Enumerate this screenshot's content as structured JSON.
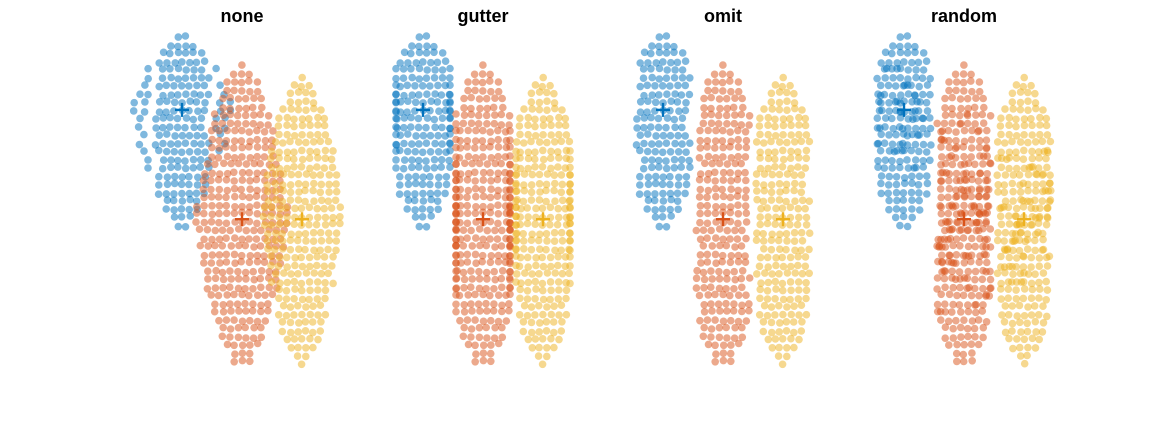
{
  "chart_data": {
    "type": "scatter",
    "title": "",
    "xlabel": "",
    "ylabel": "",
    "grid": false,
    "axes_visible": false,
    "legend": "none",
    "series_colors": [
      "#0072BD",
      "#D95319",
      "#EDB120"
    ],
    "marker_alpha": 0.5,
    "panels": [
      {
        "title": "none",
        "overflow_method": "none",
        "groups": [
          {
            "x": 1,
            "center": 6.0,
            "ymin": 2.9,
            "ymax": 8.0,
            "n": 200,
            "mean_marker": 6.0
          },
          {
            "x": 2,
            "center": 3.0,
            "ymin": -1.0,
            "ymax": 7.2,
            "n": 300,
            "mean_marker": 3.0
          },
          {
            "x": 3,
            "center": 3.0,
            "ymin": -0.9,
            "ymax": 6.9,
            "n": 200,
            "mean_marker": 3.0
          }
        ]
      },
      {
        "title": "gutter",
        "overflow_method": "gutter",
        "groups": [
          {
            "x": 1,
            "center": 6.0,
            "ymin": 2.9,
            "ymax": 8.0,
            "n": 200,
            "mean_marker": 6.0
          },
          {
            "x": 2,
            "center": 3.0,
            "ymin": -1.0,
            "ymax": 7.2,
            "n": 300,
            "mean_marker": 3.0
          },
          {
            "x": 3,
            "center": 3.0,
            "ymin": -0.9,
            "ymax": 6.9,
            "n": 200,
            "mean_marker": 3.0
          }
        ]
      },
      {
        "title": "omit",
        "overflow_method": "omit",
        "groups": [
          {
            "x": 1,
            "center": 6.0,
            "ymin": 2.9,
            "ymax": 8.0,
            "n": 200,
            "mean_marker": 6.0
          },
          {
            "x": 2,
            "center": 3.0,
            "ymin": -1.0,
            "ymax": 7.2,
            "n": 300,
            "mean_marker": 3.0
          },
          {
            "x": 3,
            "center": 3.0,
            "ymin": -0.9,
            "ymax": 6.9,
            "n": 200,
            "mean_marker": 3.0
          }
        ]
      },
      {
        "title": "random",
        "overflow_method": "random",
        "groups": [
          {
            "x": 1,
            "center": 6.0,
            "ymin": 2.9,
            "ymax": 8.0,
            "n": 200,
            "mean_marker": 6.0
          },
          {
            "x": 2,
            "center": 3.0,
            "ymin": -1.0,
            "ymax": 7.2,
            "n": 300,
            "mean_marker": 3.0
          },
          {
            "x": 3,
            "center": 3.0,
            "ymin": -0.9,
            "ymax": 6.9,
            "n": 200,
            "mean_marker": 3.0
          }
        ]
      }
    ]
  }
}
